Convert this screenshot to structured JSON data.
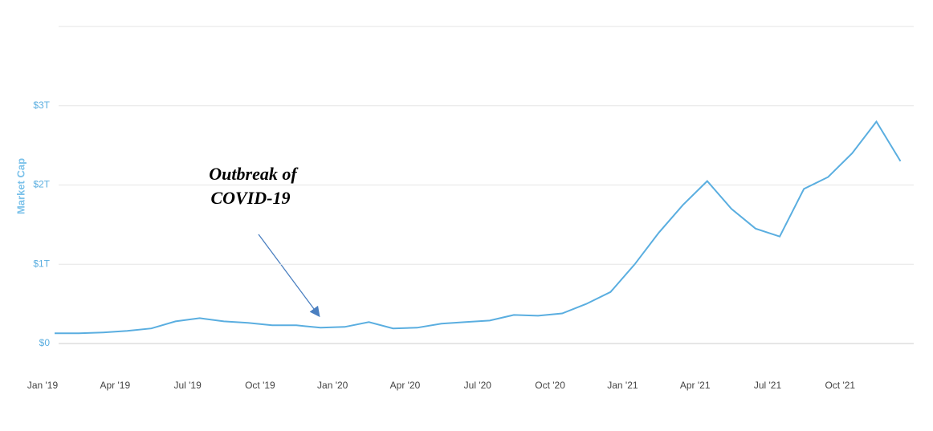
{
  "chart_data": {
    "type": "line",
    "y_label": "Market Cap",
    "annotation": [
      "Outbreak of",
      "COVID-19"
    ],
    "categories": [
      "Jan '19",
      null,
      null,
      "Apr '19",
      null,
      null,
      "Jul '19",
      null,
      null,
      "Oct '19",
      null,
      null,
      "Jan '20",
      null,
      null,
      "Apr '20",
      null,
      null,
      "Jul '20",
      null,
      null,
      "Oct '20",
      null,
      null,
      "Jan '21",
      null,
      null,
      "Apr '21",
      null,
      null,
      "Jul '21",
      null,
      null,
      "Oct '21",
      null,
      null
    ],
    "series": [
      {
        "name": "Market Cap",
        "color": "#5aaee0",
        "values": [
          0.13,
          0.13,
          0.14,
          0.16,
          0.19,
          0.28,
          0.32,
          0.28,
          0.26,
          0.23,
          0.23,
          0.2,
          0.21,
          0.27,
          0.19,
          0.2,
          0.25,
          0.27,
          0.29,
          0.36,
          0.35,
          0.38,
          0.5,
          0.65,
          1.0,
          1.4,
          1.75,
          2.05,
          1.7,
          1.45,
          1.35,
          1.95,
          2.1,
          2.4,
          2.8,
          2.3
        ]
      }
    ],
    "ylim": [
      0,
      4
    ],
    "yticks": [
      {
        "value": 0,
        "label": "$0"
      },
      {
        "value": 1,
        "label": "$1T"
      },
      {
        "value": 2,
        "label": "$2T"
      },
      {
        "value": 3,
        "label": "$3T"
      }
    ],
    "grid": true
  }
}
